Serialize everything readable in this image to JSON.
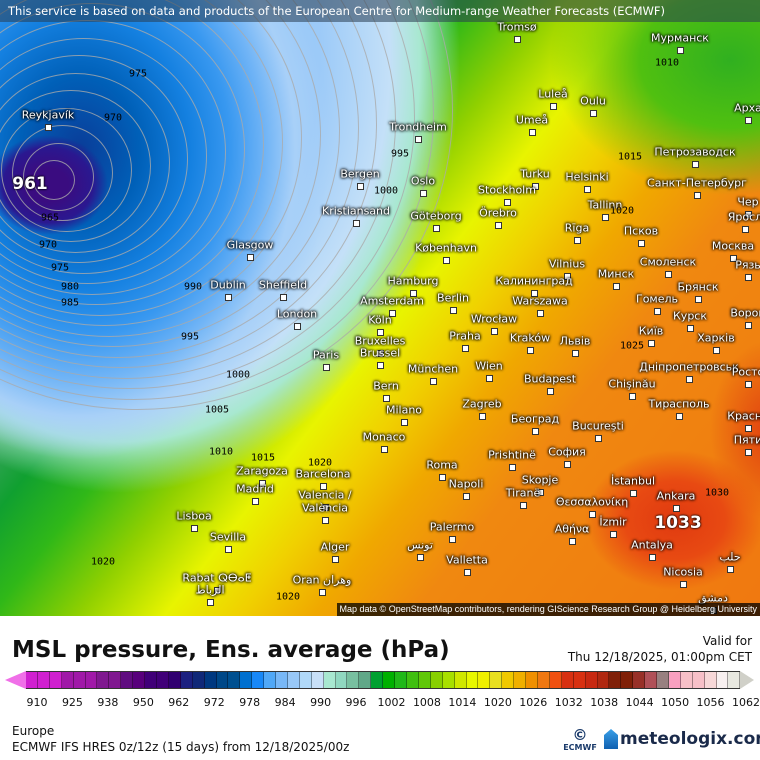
{
  "banner": "This service is based on data and products of the European Centre for Medium-range Weather Forecasts (ECMWF)",
  "map": {
    "attribution": "Map data © OpenStreetMap contributors, rendering GIScience Research Group @ Heidelberg University",
    "cities": [
      "Tromsø",
      "Мурманск",
      "Reykjavík",
      "Luleå",
      "Oulu",
      "Арха",
      "Umeå",
      "Trondheim",
      "Петрозаводск",
      "Bergen",
      "Oslo",
      "Turku",
      "Helsinki",
      "Санкт-Петербург",
      "Stockholm",
      "Kristiansand",
      "Göteborg",
      "Örebro",
      "Tallinn",
      "Чер",
      "Glasgow",
      "Rīga",
      "Псков",
      "Яросл",
      "København",
      "Москва",
      "Vilnius",
      "Dublin",
      "Sheffield",
      "Hamburg",
      "Калининград",
      "Минск",
      "Смоленск",
      "Рязь",
      "Amsterdam",
      "Berlin",
      "Warszawa",
      "Гомель",
      "Брянск",
      "London",
      "Köln",
      "Wrocław",
      "Курск",
      "Ворон",
      "Bruxelles",
      "Brussel",
      "Praha",
      "Kraków",
      "Львів",
      "Київ",
      "Харків",
      "Paris",
      "München",
      "Wien",
      "Budapest",
      "Дніпропетровськ",
      "Chişinău",
      "Росто",
      "Bern",
      "Milano",
      "Zagreb",
      "Тирасполь",
      "Красно",
      "Monaco",
      "Београд",
      "Bucureşti",
      "Пяти",
      "Zaragoza",
      "Barcelona",
      "Roma",
      "Prishtinë",
      "София",
      "Madrid",
      "Napoli",
      "Skopje",
      "İstanbul",
      "Tiranë",
      "Θεσσαλονίκη",
      "Valencia /",
      "València",
      "Lisboa",
      "Ankara",
      "Sevilla",
      "İzmir",
      "Αθήνα",
      "Palermo",
      "Alger",
      "تونس",
      "Valletta",
      "Antalya",
      "حلب",
      "Nicosia",
      "دمشق",
      "Rabat ⵕⴱⴰⵟ",
      "الرباط",
      "Oran وهران"
    ],
    "contour_labels": [
      "961",
      "1033",
      "975",
      "970",
      "965",
      "970",
      "975",
      "980",
      "985",
      "990",
      "995",
      "995",
      "1000",
      "1000",
      "1005",
      "1010",
      "1015",
      "1020",
      "1020",
      "1020",
      "1010",
      "1015",
      "1020",
      "1025",
      "1030"
    ]
  },
  "legend": {
    "title": "MSL pressure, Ens. average (hPa)",
    "valid_label": "Valid for",
    "valid_time": "Thu 12/18/2025, 01:00pm CET",
    "ticks": [
      "910",
      "925",
      "938",
      "950",
      "962",
      "972",
      "978",
      "984",
      "990",
      "996",
      "1002",
      "1008",
      "1014",
      "1020",
      "1026",
      "1032",
      "1038",
      "1044",
      "1050",
      "1056",
      "1062"
    ],
    "colors": [
      "#d020d0",
      "#d020d0",
      "#d020d0",
      "#a018a8",
      "#a018a8",
      "#a018a8",
      "#801890",
      "#801890",
      "#600c80",
      "#58007c",
      "#400078",
      "#400078",
      "#300070",
      "#1c2080",
      "#102878",
      "#003880",
      "#004888",
      "#005090",
      "#0070d0",
      "#1888f8",
      "#50a8f8",
      "#78b8f8",
      "#98c8f8",
      "#b0d8f8",
      "#c8e0f8",
      "#a8e8d0",
      "#90d8c0",
      "#78c0a0",
      "#60a888",
      "#00a030",
      "#00b000",
      "#20b818",
      "#40c010",
      "#60c808",
      "#88d000",
      "#a8e000",
      "#d0e800",
      "#e8f800",
      "#f0f000",
      "#e8e020",
      "#f0c800",
      "#f0b000",
      "#f09000",
      "#f07810",
      "#f05010",
      "#d83010",
      "#d83010",
      "#c82810",
      "#b02810",
      "#802008",
      "#802008",
      "#983028",
      "#b05058",
      "#988080",
      "#f8a0c0",
      "#f8c0c8",
      "#f8c0c8",
      "#f8d8d8",
      "#f8f0f0",
      "#e8e8e0"
    ],
    "low_color": "#f070e8",
    "high_color": "#d0d0c8"
  },
  "footer": {
    "region": "Europe",
    "model": "ECMWF IFS HRES 0z/12z (15 days) from  12/18/2025/00z",
    "ecmwf_logo": "ECMWF",
    "brand": "meteologix.com"
  }
}
